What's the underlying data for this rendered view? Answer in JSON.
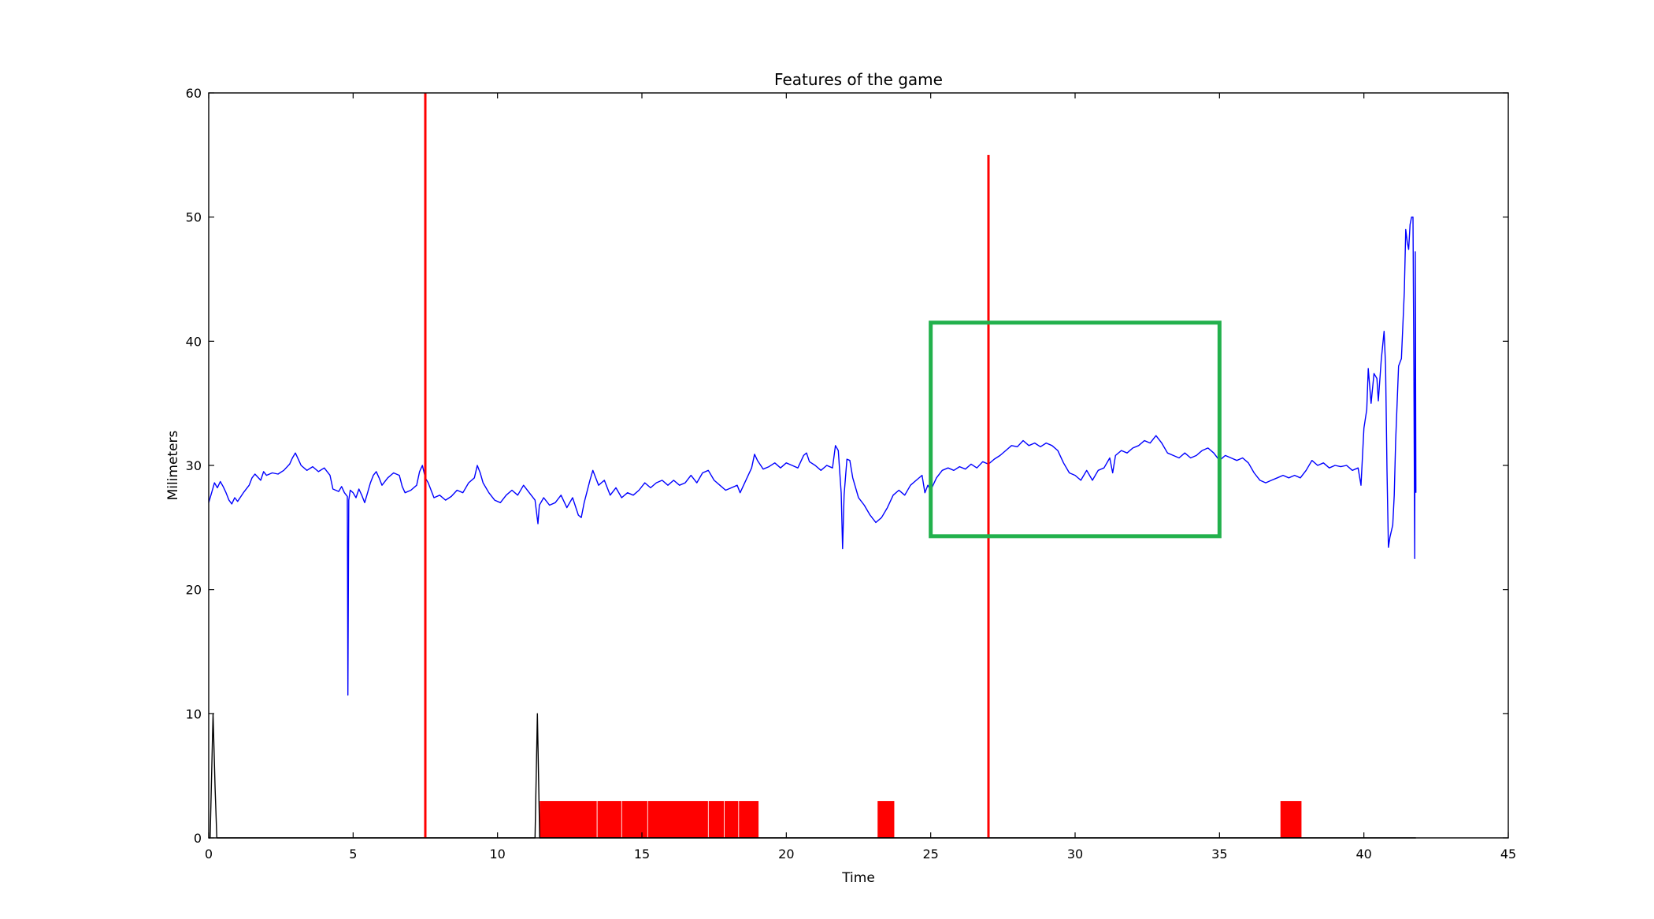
{
  "chart_data": {
    "type": "line",
    "title": "Features of the game",
    "xlabel": "Time",
    "ylabel": "Milimeters",
    "xlim": [
      0,
      45
    ],
    "ylim": [
      0,
      60
    ],
    "xticks": [
      0,
      5,
      10,
      15,
      20,
      25,
      30,
      35,
      40,
      45
    ],
    "yticks": [
      0,
      10,
      20,
      30,
      40,
      50,
      60
    ],
    "grid": false,
    "legend": "none",
    "series": [
      {
        "color": "#0000ff",
        "kind": "line",
        "points": [
          [
            0.0,
            27.0
          ],
          [
            0.1,
            27.8
          ],
          [
            0.2,
            28.6
          ],
          [
            0.3,
            28.2
          ],
          [
            0.4,
            28.7
          ],
          [
            0.5,
            28.3
          ],
          [
            0.6,
            27.8
          ],
          [
            0.7,
            27.2
          ],
          [
            0.8,
            26.9
          ],
          [
            0.9,
            27.4
          ],
          [
            1.0,
            27.1
          ],
          [
            1.2,
            27.8
          ],
          [
            1.4,
            28.4
          ],
          [
            1.5,
            29.0
          ],
          [
            1.6,
            29.3
          ],
          [
            1.8,
            28.8
          ],
          [
            1.9,
            29.5
          ],
          [
            2.0,
            29.2
          ],
          [
            2.2,
            29.4
          ],
          [
            2.4,
            29.3
          ],
          [
            2.6,
            29.6
          ],
          [
            2.8,
            30.1
          ],
          [
            2.9,
            30.6
          ],
          [
            3.0,
            31.0
          ],
          [
            3.1,
            30.5
          ],
          [
            3.2,
            30.0
          ],
          [
            3.4,
            29.6
          ],
          [
            3.6,
            29.9
          ],
          [
            3.8,
            29.5
          ],
          [
            4.0,
            29.8
          ],
          [
            4.2,
            29.2
          ],
          [
            4.3,
            28.1
          ],
          [
            4.5,
            27.9
          ],
          [
            4.6,
            28.3
          ],
          [
            4.7,
            27.8
          ],
          [
            4.8,
            27.5
          ],
          [
            4.82,
            11.5
          ],
          [
            4.85,
            27.2
          ],
          [
            4.9,
            28.0
          ],
          [
            5.0,
            27.8
          ],
          [
            5.1,
            27.4
          ],
          [
            5.2,
            28.1
          ],
          [
            5.3,
            27.6
          ],
          [
            5.4,
            27.0
          ],
          [
            5.5,
            27.8
          ],
          [
            5.6,
            28.6
          ],
          [
            5.7,
            29.2
          ],
          [
            5.8,
            29.5
          ],
          [
            5.9,
            29.0
          ],
          [
            6.0,
            28.4
          ],
          [
            6.2,
            29.0
          ],
          [
            6.4,
            29.4
          ],
          [
            6.6,
            29.2
          ],
          [
            6.7,
            28.3
          ],
          [
            6.8,
            27.8
          ],
          [
            7.0,
            28.0
          ],
          [
            7.2,
            28.4
          ],
          [
            7.3,
            29.5
          ],
          [
            7.4,
            30.0
          ],
          [
            7.5,
            29.0
          ],
          [
            7.6,
            28.6
          ],
          [
            7.8,
            27.4
          ],
          [
            8.0,
            27.6
          ],
          [
            8.2,
            27.2
          ],
          [
            8.4,
            27.5
          ],
          [
            8.6,
            28.0
          ],
          [
            8.8,
            27.8
          ],
          [
            9.0,
            28.6
          ],
          [
            9.2,
            29.0
          ],
          [
            9.3,
            30.0
          ],
          [
            9.4,
            29.4
          ],
          [
            9.5,
            28.6
          ],
          [
            9.7,
            27.8
          ],
          [
            9.9,
            27.2
          ],
          [
            10.1,
            27.0
          ],
          [
            10.3,
            27.6
          ],
          [
            10.5,
            28.0
          ],
          [
            10.7,
            27.6
          ],
          [
            10.9,
            28.4
          ],
          [
            11.1,
            27.8
          ],
          [
            11.3,
            27.2
          ],
          [
            11.4,
            25.3
          ],
          [
            11.45,
            26.8
          ],
          [
            11.6,
            27.4
          ],
          [
            11.8,
            26.8
          ],
          [
            12.0,
            27.0
          ],
          [
            12.2,
            27.6
          ],
          [
            12.4,
            26.6
          ],
          [
            12.6,
            27.4
          ],
          [
            12.8,
            26.0
          ],
          [
            12.9,
            25.8
          ],
          [
            13.0,
            27.0
          ],
          [
            13.2,
            28.8
          ],
          [
            13.3,
            29.6
          ],
          [
            13.5,
            28.4
          ],
          [
            13.7,
            28.8
          ],
          [
            13.9,
            27.6
          ],
          [
            14.1,
            28.2
          ],
          [
            14.3,
            27.4
          ],
          [
            14.5,
            27.8
          ],
          [
            14.7,
            27.6
          ],
          [
            14.9,
            28.0
          ],
          [
            15.1,
            28.6
          ],
          [
            15.3,
            28.2
          ],
          [
            15.5,
            28.6
          ],
          [
            15.7,
            28.8
          ],
          [
            15.9,
            28.4
          ],
          [
            16.1,
            28.8
          ],
          [
            16.3,
            28.4
          ],
          [
            16.5,
            28.6
          ],
          [
            16.7,
            29.2
          ],
          [
            16.9,
            28.6
          ],
          [
            17.1,
            29.4
          ],
          [
            17.3,
            29.6
          ],
          [
            17.5,
            28.8
          ],
          [
            17.7,
            28.4
          ],
          [
            17.9,
            28.0
          ],
          [
            18.1,
            28.2
          ],
          [
            18.3,
            28.4
          ],
          [
            18.4,
            27.8
          ],
          [
            18.6,
            28.8
          ],
          [
            18.8,
            29.8
          ],
          [
            18.9,
            30.9
          ],
          [
            19.0,
            30.4
          ],
          [
            19.2,
            29.7
          ],
          [
            19.4,
            29.9
          ],
          [
            19.6,
            30.2
          ],
          [
            19.8,
            29.8
          ],
          [
            20.0,
            30.2
          ],
          [
            20.2,
            30.0
          ],
          [
            20.4,
            29.8
          ],
          [
            20.6,
            30.8
          ],
          [
            20.7,
            31.0
          ],
          [
            20.8,
            30.3
          ],
          [
            21.0,
            30.0
          ],
          [
            21.2,
            29.6
          ],
          [
            21.4,
            30.0
          ],
          [
            21.6,
            29.8
          ],
          [
            21.7,
            31.6
          ],
          [
            21.8,
            31.2
          ],
          [
            21.9,
            27.8
          ],
          [
            21.95,
            23.3
          ],
          [
            22.0,
            27.6
          ],
          [
            22.1,
            30.5
          ],
          [
            22.2,
            30.4
          ],
          [
            22.3,
            29.0
          ],
          [
            22.5,
            27.4
          ],
          [
            22.7,
            26.8
          ],
          [
            22.9,
            26.0
          ],
          [
            23.1,
            25.4
          ],
          [
            23.3,
            25.8
          ],
          [
            23.5,
            26.6
          ],
          [
            23.7,
            27.6
          ],
          [
            23.9,
            28.0
          ],
          [
            24.1,
            27.6
          ],
          [
            24.3,
            28.4
          ],
          [
            24.5,
            28.8
          ],
          [
            24.7,
            29.2
          ],
          [
            24.8,
            27.8
          ],
          [
            24.9,
            28.4
          ],
          [
            25.0,
            28.0
          ],
          [
            25.2,
            29.0
          ],
          [
            25.4,
            29.6
          ],
          [
            25.6,
            29.8
          ],
          [
            25.8,
            29.6
          ],
          [
            26.0,
            29.9
          ],
          [
            26.2,
            29.7
          ],
          [
            26.4,
            30.1
          ],
          [
            26.6,
            29.8
          ],
          [
            26.8,
            30.3
          ],
          [
            27.0,
            30.1
          ],
          [
            27.2,
            30.5
          ],
          [
            27.4,
            30.8
          ],
          [
            27.6,
            31.2
          ],
          [
            27.8,
            31.6
          ],
          [
            28.0,
            31.5
          ],
          [
            28.2,
            32.0
          ],
          [
            28.4,
            31.6
          ],
          [
            28.6,
            31.8
          ],
          [
            28.8,
            31.5
          ],
          [
            29.0,
            31.8
          ],
          [
            29.2,
            31.6
          ],
          [
            29.4,
            31.2
          ],
          [
            29.6,
            30.2
          ],
          [
            29.8,
            29.4
          ],
          [
            30.0,
            29.2
          ],
          [
            30.2,
            28.8
          ],
          [
            30.4,
            29.6
          ],
          [
            30.6,
            28.8
          ],
          [
            30.8,
            29.6
          ],
          [
            31.0,
            29.8
          ],
          [
            31.2,
            30.6
          ],
          [
            31.3,
            29.4
          ],
          [
            31.4,
            30.8
          ],
          [
            31.6,
            31.2
          ],
          [
            31.8,
            31.0
          ],
          [
            32.0,
            31.4
          ],
          [
            32.2,
            31.6
          ],
          [
            32.4,
            32.0
          ],
          [
            32.6,
            31.8
          ],
          [
            32.8,
            32.4
          ],
          [
            33.0,
            31.8
          ],
          [
            33.2,
            31.0
          ],
          [
            33.4,
            30.8
          ],
          [
            33.6,
            30.6
          ],
          [
            33.8,
            31.0
          ],
          [
            34.0,
            30.6
          ],
          [
            34.2,
            30.8
          ],
          [
            34.4,
            31.2
          ],
          [
            34.6,
            31.4
          ],
          [
            34.8,
            31.0
          ],
          [
            35.0,
            30.4
          ],
          [
            35.2,
            30.8
          ],
          [
            35.4,
            30.6
          ],
          [
            35.6,
            30.4
          ],
          [
            35.8,
            30.6
          ],
          [
            36.0,
            30.2
          ],
          [
            36.2,
            29.4
          ],
          [
            36.4,
            28.8
          ],
          [
            36.6,
            28.6
          ],
          [
            36.8,
            28.8
          ],
          [
            37.0,
            29.0
          ],
          [
            37.2,
            29.2
          ],
          [
            37.4,
            29.0
          ],
          [
            37.6,
            29.2
          ],
          [
            37.8,
            29.0
          ],
          [
            38.0,
            29.6
          ],
          [
            38.2,
            30.4
          ],
          [
            38.4,
            30.0
          ],
          [
            38.6,
            30.2
          ],
          [
            38.8,
            29.8
          ],
          [
            39.0,
            30.0
          ],
          [
            39.2,
            29.9
          ],
          [
            39.4,
            30.0
          ],
          [
            39.6,
            29.6
          ],
          [
            39.8,
            29.8
          ],
          [
            39.9,
            28.4
          ],
          [
            40.0,
            33.0
          ],
          [
            40.1,
            34.5
          ],
          [
            40.15,
            37.8
          ],
          [
            40.25,
            35.0
          ],
          [
            40.35,
            37.4
          ],
          [
            40.45,
            37.0
          ],
          [
            40.5,
            35.2
          ],
          [
            40.6,
            38.5
          ],
          [
            40.7,
            40.8
          ],
          [
            40.75,
            38.0
          ],
          [
            40.8,
            29.6
          ],
          [
            40.85,
            23.4
          ],
          [
            40.9,
            24.2
          ],
          [
            41.0,
            25.2
          ],
          [
            41.05,
            27.6
          ],
          [
            41.1,
            32.0
          ],
          [
            41.2,
            38.0
          ],
          [
            41.3,
            38.6
          ],
          [
            41.4,
            44.0
          ],
          [
            41.45,
            49.0
          ],
          [
            41.5,
            48.0
          ],
          [
            41.55,
            47.4
          ],
          [
            41.6,
            49.4
          ],
          [
            41.65,
            50.0
          ],
          [
            41.7,
            50.0
          ],
          [
            41.73,
            38.0
          ],
          [
            41.76,
            22.5
          ],
          [
            41.78,
            47.2
          ],
          [
            41.8,
            27.8
          ]
        ]
      },
      {
        "color": "#000000",
        "kind": "line",
        "points": [
          [
            0.0,
            0.0
          ],
          [
            0.05,
            0.0
          ],
          [
            0.15,
            10.0
          ],
          [
            0.22,
            4.0
          ],
          [
            0.28,
            0.0
          ],
          [
            11.3,
            0.0
          ],
          [
            11.38,
            10.0
          ],
          [
            11.46,
            0.0
          ],
          [
            41.8,
            0.0
          ]
        ]
      }
    ],
    "red_bars": [
      {
        "x0": 11.45,
        "x1": 13.45,
        "y": 3
      },
      {
        "x0": 13.45,
        "x1": 14.3,
        "y": 3
      },
      {
        "x0": 14.3,
        "x1": 15.2,
        "y": 3
      },
      {
        "x0": 15.2,
        "x1": 17.3,
        "y": 3
      },
      {
        "x0": 17.3,
        "x1": 17.85,
        "y": 3
      },
      {
        "x0": 17.85,
        "x1": 18.35,
        "y": 3
      },
      {
        "x0": 18.35,
        "x1": 19.05,
        "y": 3
      },
      {
        "x0": 23.15,
        "x1": 23.75,
        "y": 3
      },
      {
        "x0": 37.1,
        "x1": 37.85,
        "y": 3
      }
    ],
    "vertical_lines": [
      {
        "x": 7.5,
        "y0": 0,
        "y1": 60,
        "color": "#ff0000"
      },
      {
        "x": 27.0,
        "y0": 0,
        "y1": 55,
        "color": "#ff0000"
      }
    ],
    "highlight_box": {
      "x0": 25.0,
      "x1": 35.0,
      "y0": 24.3,
      "y1": 41.5,
      "color": "#22b14c"
    }
  }
}
